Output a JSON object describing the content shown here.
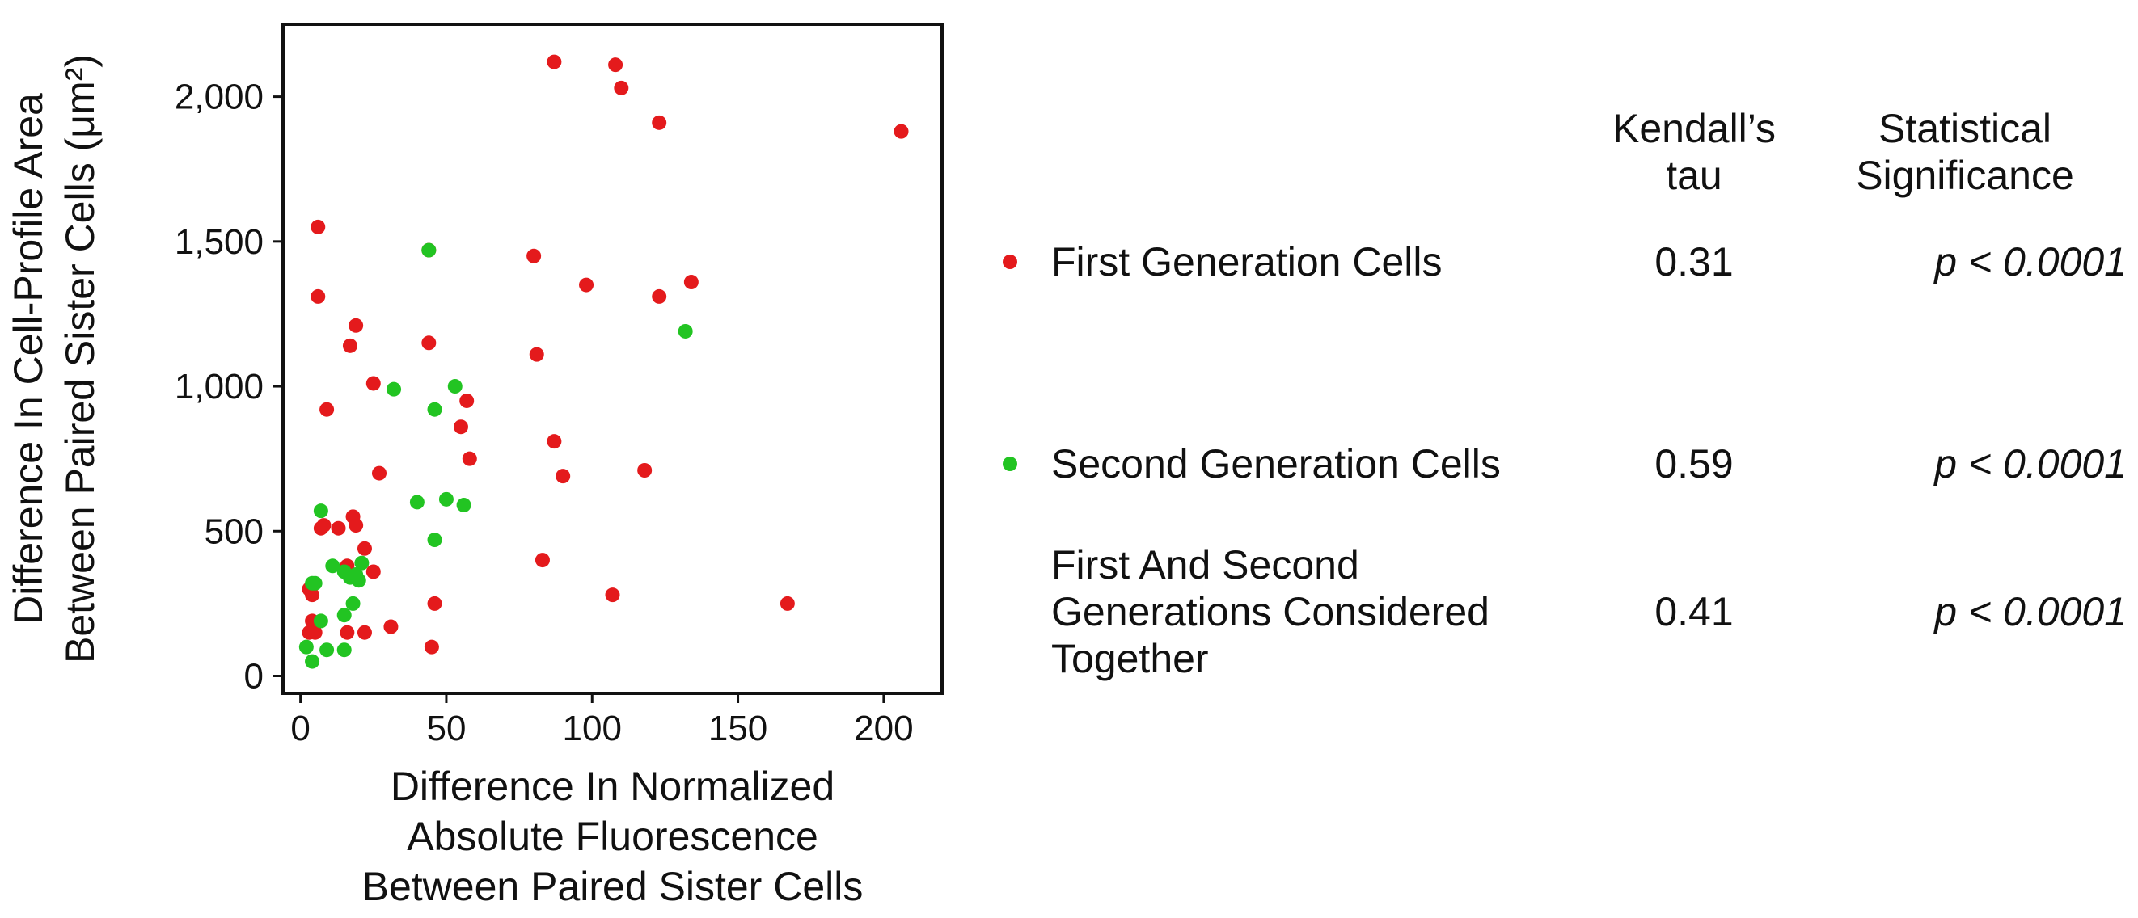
{
  "colors": {
    "first": "#e41a1c",
    "second": "#22c422",
    "axis": "#111111"
  },
  "chart_data": {
    "type": "scatter",
    "title": "",
    "xlabel": [
      "Difference In Normalized",
      "Absolute Fluorescence",
      "Between Paired Sister Cells"
    ],
    "ylabel": [
      "Difference In Cell-Profile Area",
      "Between Paired Sister Cells (μm²)"
    ],
    "xlim": [
      -6,
      220
    ],
    "ylim": [
      -60,
      2250
    ],
    "xticks": [
      0,
      50,
      100,
      150,
      200
    ],
    "xtick_labels": [
      "0",
      "50",
      "100",
      "150",
      "200"
    ],
    "yticks": [
      0,
      500,
      1000,
      1500,
      2000
    ],
    "ytick_labels": [
      "0",
      "500",
      "1,000",
      "1,500",
      "2,000"
    ],
    "series": [
      {
        "name": "First Generation Cells",
        "color": "#e41a1c",
        "points": [
          [
            87,
            2120
          ],
          [
            108,
            2110
          ],
          [
            110,
            2030
          ],
          [
            123,
            1910
          ],
          [
            206,
            1880
          ],
          [
            6,
            1550
          ],
          [
            80,
            1450
          ],
          [
            44,
            1470
          ],
          [
            98,
            1350
          ],
          [
            134,
            1360
          ],
          [
            6,
            1310
          ],
          [
            123,
            1310
          ],
          [
            19,
            1210
          ],
          [
            17,
            1140
          ],
          [
            44,
            1150
          ],
          [
            81,
            1110
          ],
          [
            25,
            1010
          ],
          [
            57,
            950
          ],
          [
            9,
            920
          ],
          [
            55,
            860
          ],
          [
            87,
            810
          ],
          [
            58,
            750
          ],
          [
            118,
            710
          ],
          [
            27,
            700
          ],
          [
            90,
            690
          ],
          [
            8,
            520
          ],
          [
            13,
            510
          ],
          [
            18,
            550
          ],
          [
            19,
            520
          ],
          [
            7,
            510
          ],
          [
            22,
            440
          ],
          [
            83,
            400
          ],
          [
            16,
            380
          ],
          [
            25,
            360
          ],
          [
            3,
            300
          ],
          [
            4,
            280
          ],
          [
            46,
            250
          ],
          [
            107,
            280
          ],
          [
            167,
            250
          ],
          [
            4,
            190
          ],
          [
            31,
            170
          ],
          [
            3,
            150
          ],
          [
            5,
            150
          ],
          [
            16,
            150
          ],
          [
            22,
            150
          ],
          [
            45,
            100
          ]
        ]
      },
      {
        "name": "Second Generation Cells",
        "color": "#22c422",
        "points": [
          [
            44,
            1470
          ],
          [
            132,
            1190
          ],
          [
            53,
            1000
          ],
          [
            32,
            990
          ],
          [
            46,
            920
          ],
          [
            50,
            610
          ],
          [
            40,
            600
          ],
          [
            56,
            590
          ],
          [
            7,
            570
          ],
          [
            46,
            470
          ],
          [
            11,
            380
          ],
          [
            21,
            390
          ],
          [
            15,
            360
          ],
          [
            19,
            350
          ],
          [
            17,
            340
          ],
          [
            20,
            330
          ],
          [
            5,
            320
          ],
          [
            18,
            250
          ],
          [
            4,
            320
          ],
          [
            15,
            210
          ],
          [
            7,
            190
          ],
          [
            2,
            100
          ],
          [
            9,
            90
          ],
          [
            15,
            90
          ],
          [
            4,
            50
          ]
        ]
      }
    ],
    "legend_table": {
      "headers": {
        "tau": [
          "Kendall’s",
          "tau"
        ],
        "significance": [
          "Statistical",
          "Significance"
        ]
      },
      "rows": [
        {
          "label": "First Generation Cells",
          "tau": "0.31",
          "p_symbol": "p",
          "p_rest": " < 0.0001",
          "marker": "first"
        },
        {
          "label": "Second Generation Cells",
          "tau": "0.59",
          "p_symbol": "p",
          "p_rest": " < 0.0001",
          "marker": "second"
        },
        {
          "label_lines": [
            "First And Second",
            "Generations Considered",
            "Together"
          ],
          "tau": "0.41",
          "p_symbol": "p",
          "p_rest": " < 0.0001",
          "marker": "none"
        }
      ]
    }
  }
}
